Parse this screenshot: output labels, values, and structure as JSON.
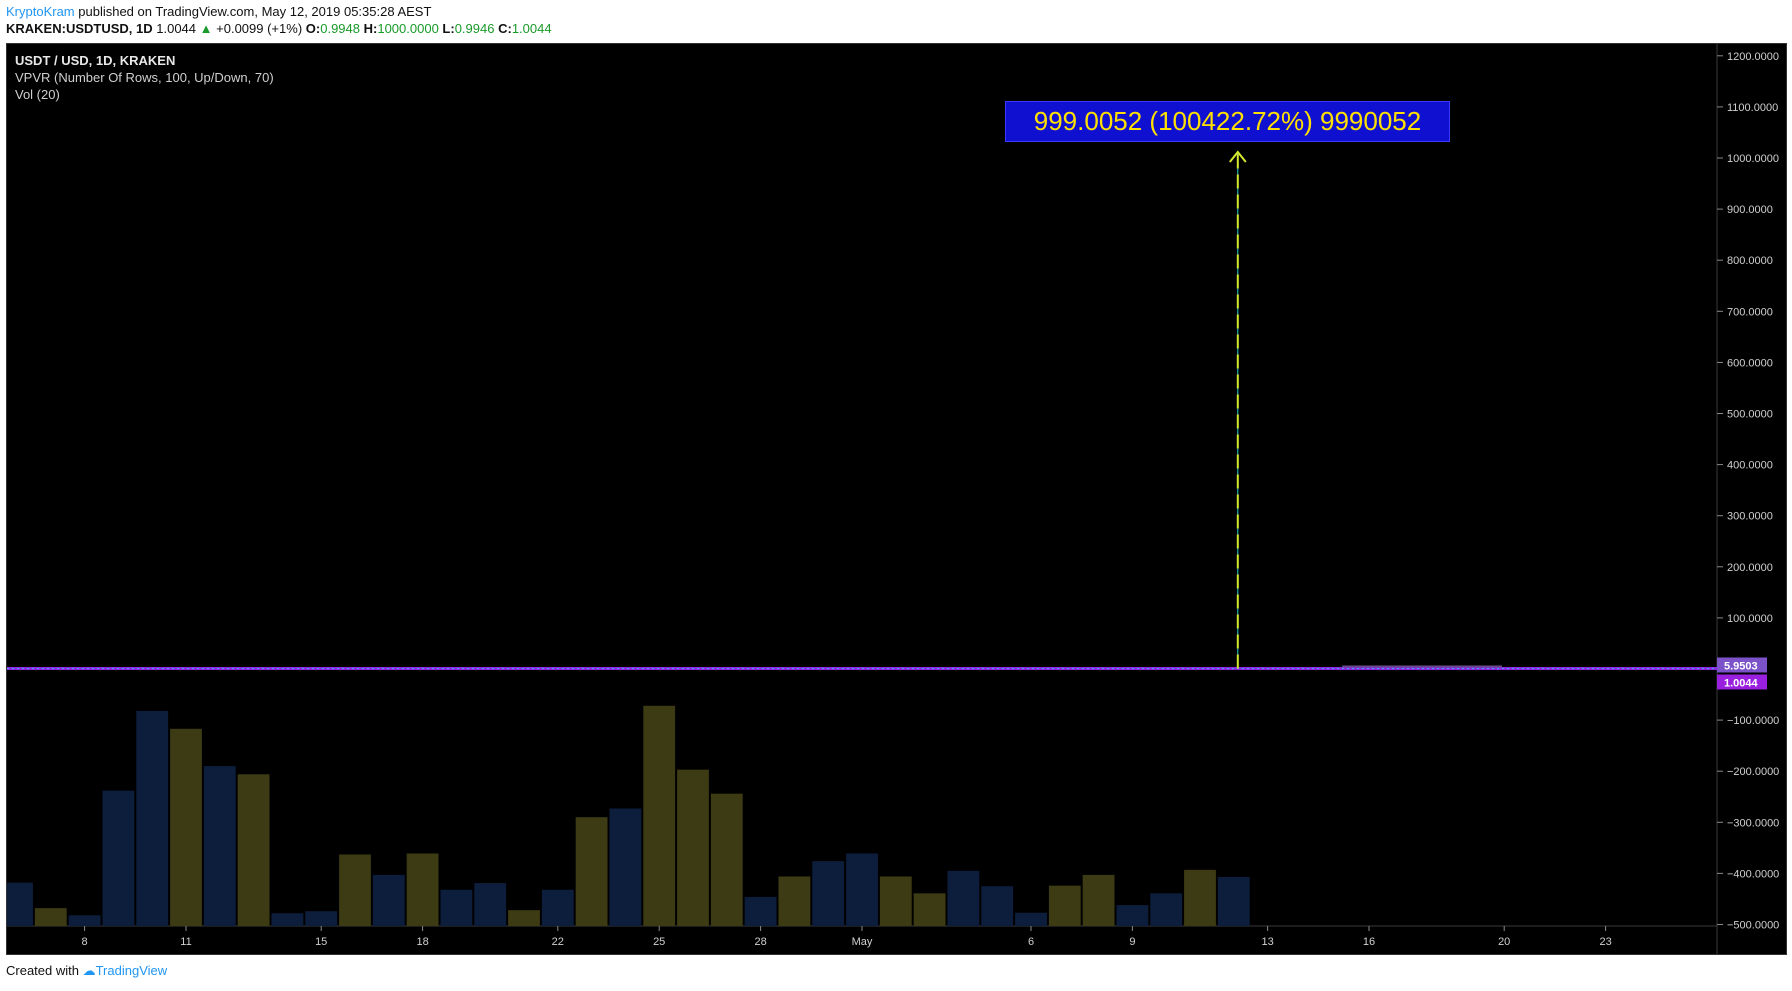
{
  "header": {
    "author": "KryptoKram",
    "published_text": " published on TradingView.com, May 12, 2019 05:35:28 AEST",
    "symbol": "KRAKEN:USDTUSD, 1D",
    "last": "1.0044",
    "change_arrow": "▲",
    "change": "+0.0099 (+1%)",
    "o_label": "O:",
    "o_value": "0.9948",
    "h_label": "H:",
    "h_value": "1000.0000",
    "l_label": "L:",
    "l_value": "0.9946",
    "c_label": "C:",
    "c_value": "1.0044"
  },
  "legend": {
    "title": "USDT / USD, 1D, KRAKEN",
    "vpvr": "VPVR (Number Of Rows, 100, Up/Down, 70)",
    "vol": "Vol (20)"
  },
  "measure_label": "999.0052 (100422.72%) 9990052",
  "footer": {
    "created_with": "Created with ",
    "logo_text": "TradingView"
  },
  "colors": {
    "background": "#000000",
    "up_volume": "#3d3b13",
    "down_volume": "#0d1e3d",
    "price_line": "#8a2be2",
    "measure_arrow": "#d4e82e",
    "measure_box": "#1010d0",
    "price_tag_1": "#7b52c8",
    "price_tag_2": "#9a20e0"
  },
  "chart_data": {
    "type": "bar",
    "title": "USDT / USD, 1D, KRAKEN",
    "y_axis_ticks": [
      "1200.0000",
      "1100.0000",
      "1000.0000",
      "900.0000",
      "800.0000",
      "700.0000",
      "600.0000",
      "500.0000",
      "400.0000",
      "300.0000",
      "200.0000",
      "100.0000",
      "−100.0000",
      "−200.0000",
      "−300.0000",
      "−400.0000",
      "−500.0000"
    ],
    "y_axis_values": [
      1200,
      1100,
      1000,
      900,
      800,
      700,
      600,
      500,
      400,
      300,
      200,
      100,
      -100,
      -200,
      -300,
      -400,
      -500
    ],
    "ylim": [
      -500,
      1200
    ],
    "price_tags": [
      "5.9503",
      "1.0044"
    ],
    "x_ticks": [
      "8",
      "11",
      "15",
      "18",
      "22",
      "25",
      "28",
      "May",
      "6",
      "9",
      "13",
      "16",
      "20",
      "23"
    ],
    "x_tick_day_index": [
      2,
      5,
      9,
      12,
      16,
      19,
      22,
      25,
      30,
      33,
      37,
      40,
      44,
      47
    ],
    "price_spike": {
      "day_index": 36,
      "high": 1000.0,
      "base": 1.0044
    },
    "volume_series": [
      {
        "day_index": 0,
        "value": -418,
        "dir": "down"
      },
      {
        "day_index": 1,
        "value": -468,
        "dir": "up"
      },
      {
        "day_index": 2,
        "value": -482,
        "dir": "down"
      },
      {
        "day_index": 3,
        "value": -238,
        "dir": "down"
      },
      {
        "day_index": 4,
        "value": -82,
        "dir": "down"
      },
      {
        "day_index": 5,
        "value": -117,
        "dir": "up"
      },
      {
        "day_index": 6,
        "value": -190,
        "dir": "down"
      },
      {
        "day_index": 7,
        "value": -206,
        "dir": "up"
      },
      {
        "day_index": 8,
        "value": -478,
        "dir": "down"
      },
      {
        "day_index": 9,
        "value": -474,
        "dir": "down"
      },
      {
        "day_index": 10,
        "value": -363,
        "dir": "up"
      },
      {
        "day_index": 11,
        "value": -403,
        "dir": "down"
      },
      {
        "day_index": 12,
        "value": -361,
        "dir": "up"
      },
      {
        "day_index": 13,
        "value": -432,
        "dir": "down"
      },
      {
        "day_index": 14,
        "value": -419,
        "dir": "down"
      },
      {
        "day_index": 15,
        "value": -472,
        "dir": "up"
      },
      {
        "day_index": 16,
        "value": -432,
        "dir": "down"
      },
      {
        "day_index": 17,
        "value": -290,
        "dir": "up"
      },
      {
        "day_index": 18,
        "value": -273,
        "dir": "down"
      },
      {
        "day_index": 19,
        "value": -72,
        "dir": "up"
      },
      {
        "day_index": 20,
        "value": -197,
        "dir": "up"
      },
      {
        "day_index": 21,
        "value": -244,
        "dir": "up"
      },
      {
        "day_index": 22,
        "value": -446,
        "dir": "down"
      },
      {
        "day_index": 23,
        "value": -406,
        "dir": "up"
      },
      {
        "day_index": 24,
        "value": -376,
        "dir": "down"
      },
      {
        "day_index": 25,
        "value": -361,
        "dir": "down"
      },
      {
        "day_index": 26,
        "value": -406,
        "dir": "up"
      },
      {
        "day_index": 27,
        "value": -439,
        "dir": "up"
      },
      {
        "day_index": 28,
        "value": -395,
        "dir": "down"
      },
      {
        "day_index": 29,
        "value": -425,
        "dir": "down"
      },
      {
        "day_index": 30,
        "value": -477,
        "dir": "down"
      },
      {
        "day_index": 31,
        "value": -424,
        "dir": "up"
      },
      {
        "day_index": 32,
        "value": -403,
        "dir": "up"
      },
      {
        "day_index": 33,
        "value": -462,
        "dir": "down"
      },
      {
        "day_index": 34,
        "value": -439,
        "dir": "down"
      },
      {
        "day_index": 35,
        "value": -393,
        "dir": "up"
      },
      {
        "day_index": 36,
        "value": -407,
        "dir": "down"
      }
    ]
  }
}
